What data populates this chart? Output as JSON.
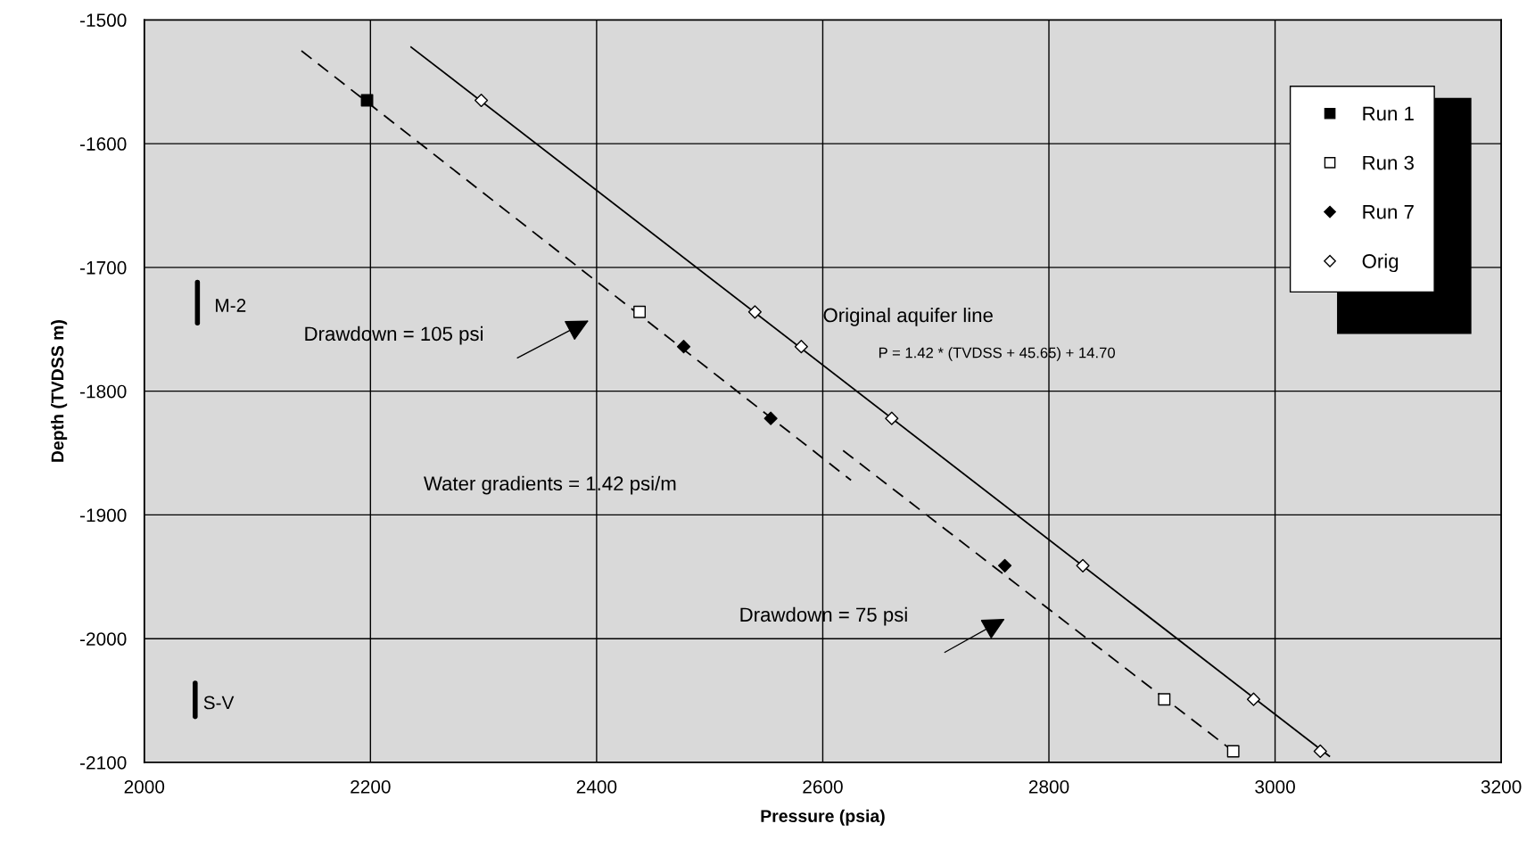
{
  "chart_data": {
    "type": "scatter",
    "xlabel": "Pressure (psia)",
    "ylabel": "Depth (TVDSS m)",
    "xlim": [
      2000,
      3200
    ],
    "xticks": [
      2000,
      2200,
      2400,
      2600,
      2800,
      3000,
      3200
    ],
    "ylim": [
      -2100,
      -1500
    ],
    "yticks": [
      -2100,
      -2000,
      -1900,
      -1800,
      -1700,
      -1600,
      -1500
    ],
    "grid": true,
    "legend": "top right",
    "series": [
      {
        "name": "Run 1",
        "color": "#000000",
        "marker": "square",
        "x": [
          2197
        ],
        "values": [
          -1565
        ]
      },
      {
        "name": "Run 3",
        "color": "#ffffff",
        "marker": "square",
        "x": [
          2438,
          2902,
          2963
        ],
        "values": [
          -1736,
          -2049,
          -2091
        ]
      },
      {
        "name": "Run 7",
        "color": "#000000",
        "marker": "diamond",
        "x": [
          2477,
          2554,
          2761
        ],
        "values": [
          -1764,
          -1822,
          -1941
        ]
      },
      {
        "name": "Orig",
        "color": "#ffffff",
        "marker": "diamond",
        "x": [
          2298,
          2540,
          2581,
          2661,
          2830,
          2981,
          3040
        ],
        "values": [
          -1565,
          -1736,
          -1764,
          -1822,
          -1941,
          -2049,
          -2091
        ]
      },
      {
        "type": "line",
        "color": "#000000",
        "marker": "none",
        "line_style": "dashed",
        "x": [
          2139,
          2625
        ],
        "values": [
          -1525,
          -1872
        ]
      },
      {
        "type": "line",
        "color": "#000000",
        "marker": "none",
        "line_style": "dashed",
        "x": [
          2618,
          2963
        ],
        "values": [
          -1848,
          -2091
        ]
      },
      {
        "type": "line",
        "color": "#000000",
        "marker": "none",
        "line_style": "solid",
        "x": [
          2236,
          3048
        ],
        "values": [
          -1522,
          -2095
        ]
      }
    ],
    "annotations": [
      "Original aquifer line",
      "P = 1.42 * (TVDSS + 45.65) + 14.70",
      "Water gradients = 1.42 psi/m",
      "Drawdown = 105 psi",
      "Drawdown = 75 psi",
      "M-2",
      "S-V"
    ]
  }
}
